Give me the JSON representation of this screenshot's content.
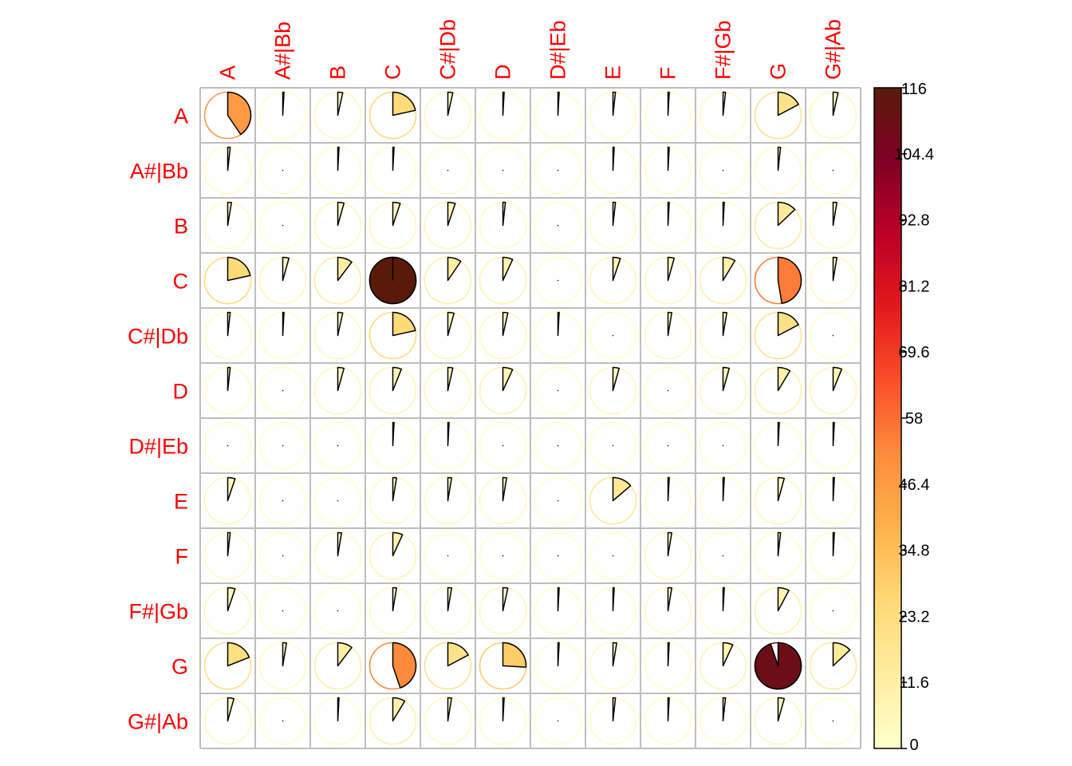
{
  "chart_data": {
    "type": "heatmap",
    "subtype": "corrplot-pie",
    "title": "",
    "labels": [
      "A",
      "A#|Bb",
      "B",
      "C",
      "C#|Db",
      "D",
      "D#|Eb",
      "E",
      "F",
      "F#|Gb",
      "G",
      "G#|Ab"
    ],
    "matrix": [
      [
        47,
        1,
        4,
        25,
        4,
        1,
        1,
        2,
        1,
        2,
        20,
        4
      ],
      [
        2,
        0,
        1,
        1,
        0,
        0,
        0,
        1,
        1,
        0,
        2,
        0
      ],
      [
        3,
        0,
        5,
        6,
        6,
        2,
        0,
        2,
        1,
        1,
        15,
        3
      ],
      [
        25,
        5,
        12,
        116,
        11,
        8,
        0,
        6,
        5,
        10,
        55,
        3
      ],
      [
        2,
        1,
        4,
        25,
        5,
        4,
        1,
        0,
        3,
        3,
        20,
        0
      ],
      [
        2,
        0,
        5,
        7,
        4,
        8,
        0,
        5,
        0,
        5,
        10,
        7
      ],
      [
        0,
        0,
        0,
        1,
        1,
        0,
        0,
        0,
        0,
        0,
        1,
        1
      ],
      [
        6,
        0,
        0,
        3,
        3,
        3,
        0,
        16,
        1,
        1,
        5,
        1
      ],
      [
        2,
        0,
        3,
        8,
        0,
        0,
        0,
        0,
        3,
        0,
        2,
        1
      ],
      [
        6,
        0,
        0,
        3,
        3,
        4,
        1,
        1,
        3,
        1,
        9,
        0
      ],
      [
        22,
        3,
        12,
        52,
        20,
        30,
        1,
        3,
        1,
        8,
        110,
        15
      ],
      [
        5,
        0,
        1,
        10,
        3,
        1,
        0,
        2,
        1,
        2,
        5,
        0
      ]
    ],
    "colorbar": {
      "min": 0,
      "max": 116,
      "ticks": [
        "0",
        "11.6",
        "23.2",
        "34.8",
        "46.4",
        "58",
        "69.6",
        "81.2",
        "92.8",
        "104.4",
        "116"
      ]
    },
    "colors": {
      "label": "#ff0000",
      "grid": "#bebebe",
      "scale": [
        "#FFFFCC",
        "#FFEDA0",
        "#FED976",
        "#FEB24C",
        "#FD8D3C",
        "#FC4E2A",
        "#E31A1C",
        "#BD0026",
        "#800026",
        "#5A1A0A"
      ]
    }
  }
}
